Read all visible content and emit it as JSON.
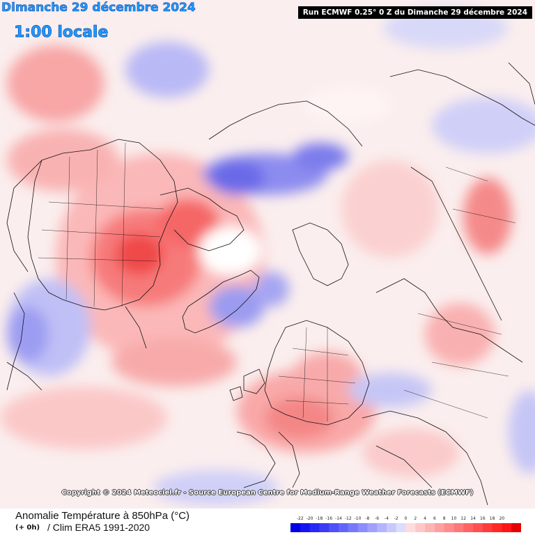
{
  "header": {
    "date": "Dimanche 29 décembre 2024",
    "time": "1:00 locale",
    "run": "Run ECMWF 0.25° 0 Z du Dimanche 29 décembre 2024"
  },
  "map": {
    "projection": "polar stereographic, North Pole centered",
    "copyright": "Copyright © 2024 Meteociel.fr - Source European Centre for Medium-Range Weather Forecasts (ECMWF)"
  },
  "footer": {
    "title": "Anomalie Température à 850hPa (°C)",
    "step": "(+ 0h)",
    "clim": "/ Clim ERA5 1991-2020"
  },
  "legend": {
    "ticks": [
      "-22",
      "-20",
      "-18",
      "-16",
      "-14",
      "-12",
      "-10",
      "-8",
      "-6",
      "-4",
      "-2",
      "0",
      "2",
      "4",
      "6",
      "8",
      "10",
      "12",
      "14",
      "16",
      "18",
      "20"
    ],
    "colors": [
      "#0000e6",
      "#1414f0",
      "#2828f5",
      "#3c3cf8",
      "#5050fa",
      "#6464fb",
      "#7878fc",
      "#8c8cfc",
      "#a0a0fd",
      "#b4b4fd",
      "#c8c8fe",
      "#dcdcfe",
      "#ffdcdc",
      "#ffc8c8",
      "#ffb4b4",
      "#ffa0a0",
      "#ff8c8c",
      "#ff7878",
      "#ff6464",
      "#ff5050",
      "#ff3c3c",
      "#ff2828",
      "#ff1414",
      "#e60000"
    ]
  }
}
